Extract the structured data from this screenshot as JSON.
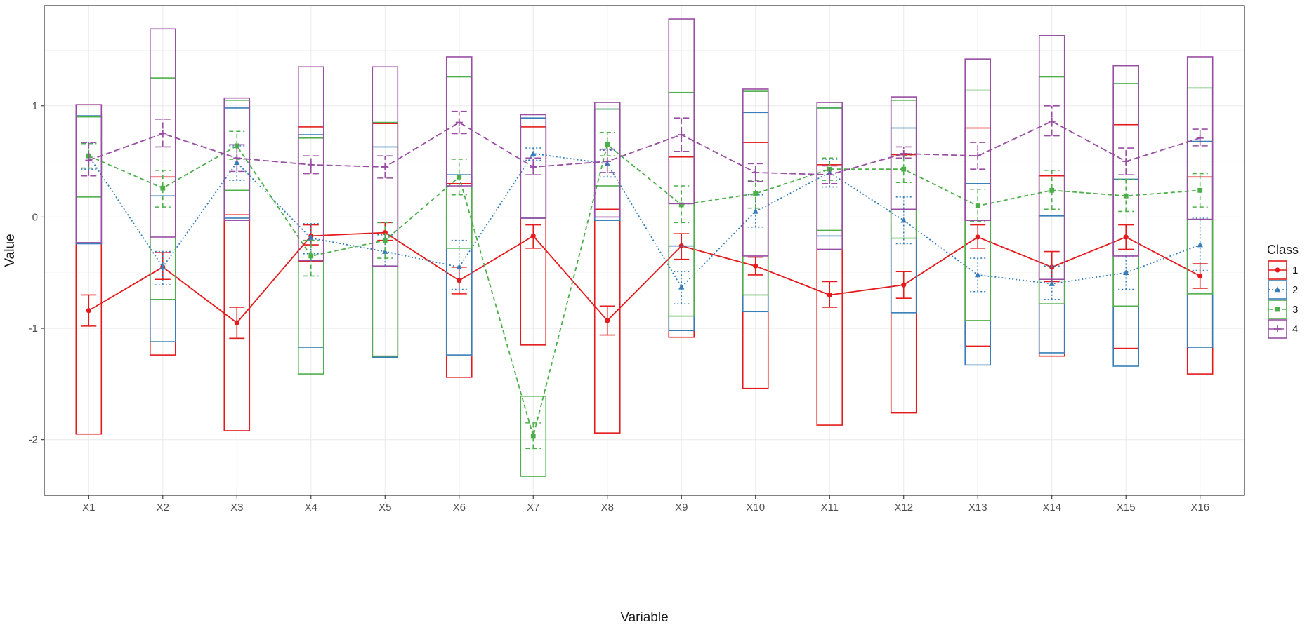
{
  "chart_data": {
    "type": "line",
    "title": "",
    "xlabel": "Variable",
    "ylabel": "Value",
    "categories": [
      "X1",
      "X2",
      "X3",
      "X4",
      "X5",
      "X6",
      "X7",
      "X8",
      "X9",
      "X10",
      "X11",
      "X12",
      "X13",
      "X14",
      "X15",
      "X16"
    ],
    "ylim": [
      -2.5,
      1.9
    ],
    "yticks": [
      -2,
      -1,
      0,
      1
    ],
    "grid": true,
    "legend": {
      "title": "Class",
      "position": "right"
    },
    "series": [
      {
        "name": "1",
        "color": "#E41A1C",
        "dash": "solid",
        "marker": "circle",
        "values": [
          -0.84,
          -0.45,
          -0.95,
          -0.17,
          -0.14,
          -0.57,
          -0.17,
          -0.93,
          -0.26,
          -0.44,
          -0.7,
          -0.61,
          -0.18,
          -0.45,
          -0.18,
          -0.53
        ],
        "ci": [
          [
            -0.98,
            -0.7
          ],
          [
            -0.56,
            -0.32
          ],
          [
            -1.09,
            -0.81
          ],
          [
            -0.25,
            -0.07
          ],
          [
            -0.21,
            -0.05
          ],
          [
            -0.69,
            -0.45
          ],
          [
            -0.28,
            -0.07
          ],
          [
            -1.06,
            -0.8
          ],
          [
            -0.38,
            -0.15
          ],
          [
            -0.52,
            -0.36
          ],
          [
            -0.81,
            -0.58
          ],
          [
            -0.73,
            -0.49
          ],
          [
            -0.28,
            -0.07
          ],
          [
            -0.58,
            -0.31
          ],
          [
            -0.29,
            -0.07
          ],
          [
            -0.64,
            -0.42
          ]
        ],
        "range": [
          [
            -1.95,
            1.01
          ],
          [
            -1.24,
            0.36
          ],
          [
            -1.92,
            0.02
          ],
          [
            -0.4,
            0.81
          ],
          [
            -1.25,
            0.84
          ],
          [
            -1.44,
            0.3
          ],
          [
            -1.15,
            0.81
          ],
          [
            -1.94,
            0.07
          ],
          [
            -1.08,
            0.54
          ],
          [
            -1.54,
            0.67
          ],
          [
            -1.87,
            0.47
          ],
          [
            -1.76,
            0.56
          ],
          [
            -1.16,
            0.8
          ],
          [
            -1.25,
            0.37
          ],
          [
            -1.18,
            0.83
          ],
          [
            -1.41,
            0.36
          ]
        ]
      },
      {
        "name": "2",
        "color": "#377EB8",
        "dash": "dotted",
        "marker": "triangle",
        "values": [
          0.55,
          -0.45,
          0.49,
          -0.19,
          -0.31,
          -0.45,
          0.57,
          0.48,
          -0.63,
          0.05,
          0.4,
          -0.03,
          -0.52,
          -0.6,
          -0.5,
          -0.25
        ],
        "ci": [
          [
            0.43,
            0.66
          ],
          [
            -0.61,
            -0.31
          ],
          [
            0.33,
            0.64
          ],
          [
            -0.33,
            -0.06
          ],
          [
            -0.44,
            -0.16
          ],
          [
            -0.65,
            -0.21
          ],
          [
            0.51,
            0.62
          ],
          [
            0.36,
            0.6
          ],
          [
            -0.78,
            -0.49
          ],
          [
            -0.09,
            0.2
          ],
          [
            0.27,
            0.52
          ],
          [
            -0.24,
            0.18
          ],
          [
            -0.67,
            -0.37
          ],
          [
            -0.74,
            -0.44
          ],
          [
            -0.65,
            -0.35
          ],
          [
            -0.48,
            -0.01
          ]
        ],
        "range": [
          [
            -0.24,
            0.91
          ],
          [
            -1.12,
            0.19
          ],
          [
            -0.01,
            0.98
          ],
          [
            -1.17,
            0.74
          ],
          [
            -1.26,
            0.63
          ],
          [
            -1.24,
            0.38
          ],
          [
            -0.01,
            0.89
          ],
          [
            -0.03,
            0.97
          ],
          [
            -1.02,
            -0.26
          ],
          [
            -0.85,
            0.94
          ],
          [
            -0.17,
            0.98
          ],
          [
            -0.86,
            0.8
          ],
          [
            -1.33,
            0.3
          ],
          [
            -1.22,
            0.01
          ],
          [
            -1.34,
            0.34
          ],
          [
            -1.17,
            0.68
          ]
        ]
      },
      {
        "name": "3",
        "color": "#4DAF4A",
        "dash": "dashed",
        "marker": "square",
        "values": [
          0.55,
          0.26,
          0.64,
          -0.35,
          -0.21,
          0.36,
          -1.97,
          0.65,
          0.11,
          0.21,
          0.43,
          0.43,
          0.1,
          0.24,
          0.19,
          0.24
        ],
        "ci": [
          [
            0.44,
            0.66
          ],
          [
            0.09,
            0.42
          ],
          [
            0.52,
            0.77
          ],
          [
            -0.53,
            -0.21
          ],
          [
            -0.37,
            -0.05
          ],
          [
            0.2,
            0.52
          ],
          [
            -2.08,
            -1.85
          ],
          [
            0.55,
            0.76
          ],
          [
            -0.05,
            0.28
          ],
          [
            0.08,
            0.33
          ],
          [
            0.33,
            0.53
          ],
          [
            0.31,
            0.55
          ],
          [
            -0.04,
            0.25
          ],
          [
            0.07,
            0.42
          ],
          [
            0.05,
            0.34
          ],
          [
            0.09,
            0.39
          ]
        ],
        "range": [
          [
            0.18,
            0.9
          ],
          [
            -0.74,
            1.25
          ],
          [
            0.24,
            1.05
          ],
          [
            -1.41,
            0.71
          ],
          [
            -1.25,
            0.85
          ],
          [
            -0.28,
            1.26
          ],
          [
            -2.33,
            -1.61
          ],
          [
            0.28,
            0.97
          ],
          [
            -0.89,
            1.12
          ],
          [
            -0.7,
            1.13
          ],
          [
            -0.12,
            0.98
          ],
          [
            -0.19,
            1.05
          ],
          [
            -0.93,
            1.14
          ],
          [
            -0.78,
            1.26
          ],
          [
            -0.8,
            1.2
          ],
          [
            -0.69,
            1.16
          ]
        ]
      },
      {
        "name": "4",
        "color": "#984EA3",
        "dash": "longdash",
        "marker": "plus",
        "values": [
          0.51,
          0.75,
          0.53,
          0.47,
          0.45,
          0.85,
          0.45,
          0.5,
          0.74,
          0.4,
          0.38,
          0.57,
          0.55,
          0.86,
          0.5,
          0.71
        ],
        "ci": [
          [
            0.37,
            0.67
          ],
          [
            0.63,
            0.88
          ],
          [
            0.41,
            0.65
          ],
          [
            0.39,
            0.55
          ],
          [
            0.35,
            0.55
          ],
          [
            0.75,
            0.95
          ],
          [
            0.38,
            0.53
          ],
          [
            0.4,
            0.61
          ],
          [
            0.59,
            0.89
          ],
          [
            0.32,
            0.48
          ],
          [
            0.3,
            0.46
          ],
          [
            0.53,
            0.63
          ],
          [
            0.43,
            0.67
          ],
          [
            0.73,
            1.0
          ],
          [
            0.38,
            0.62
          ],
          [
            0.64,
            0.79
          ]
        ],
        "range": [
          [
            -0.23,
            1.01
          ],
          [
            -0.18,
            1.69
          ],
          [
            -0.03,
            1.07
          ],
          [
            -0.39,
            1.35
          ],
          [
            -0.44,
            1.35
          ],
          [
            0.28,
            1.44
          ],
          [
            -0.01,
            0.92
          ],
          [
            0.0,
            1.03
          ],
          [
            0.12,
            1.78
          ],
          [
            -0.35,
            1.15
          ],
          [
            -0.29,
            1.03
          ],
          [
            0.07,
            1.08
          ],
          [
            -0.03,
            1.42
          ],
          [
            -0.56,
            1.63
          ],
          [
            -0.35,
            1.36
          ],
          [
            -0.02,
            1.44
          ]
        ]
      }
    ]
  }
}
